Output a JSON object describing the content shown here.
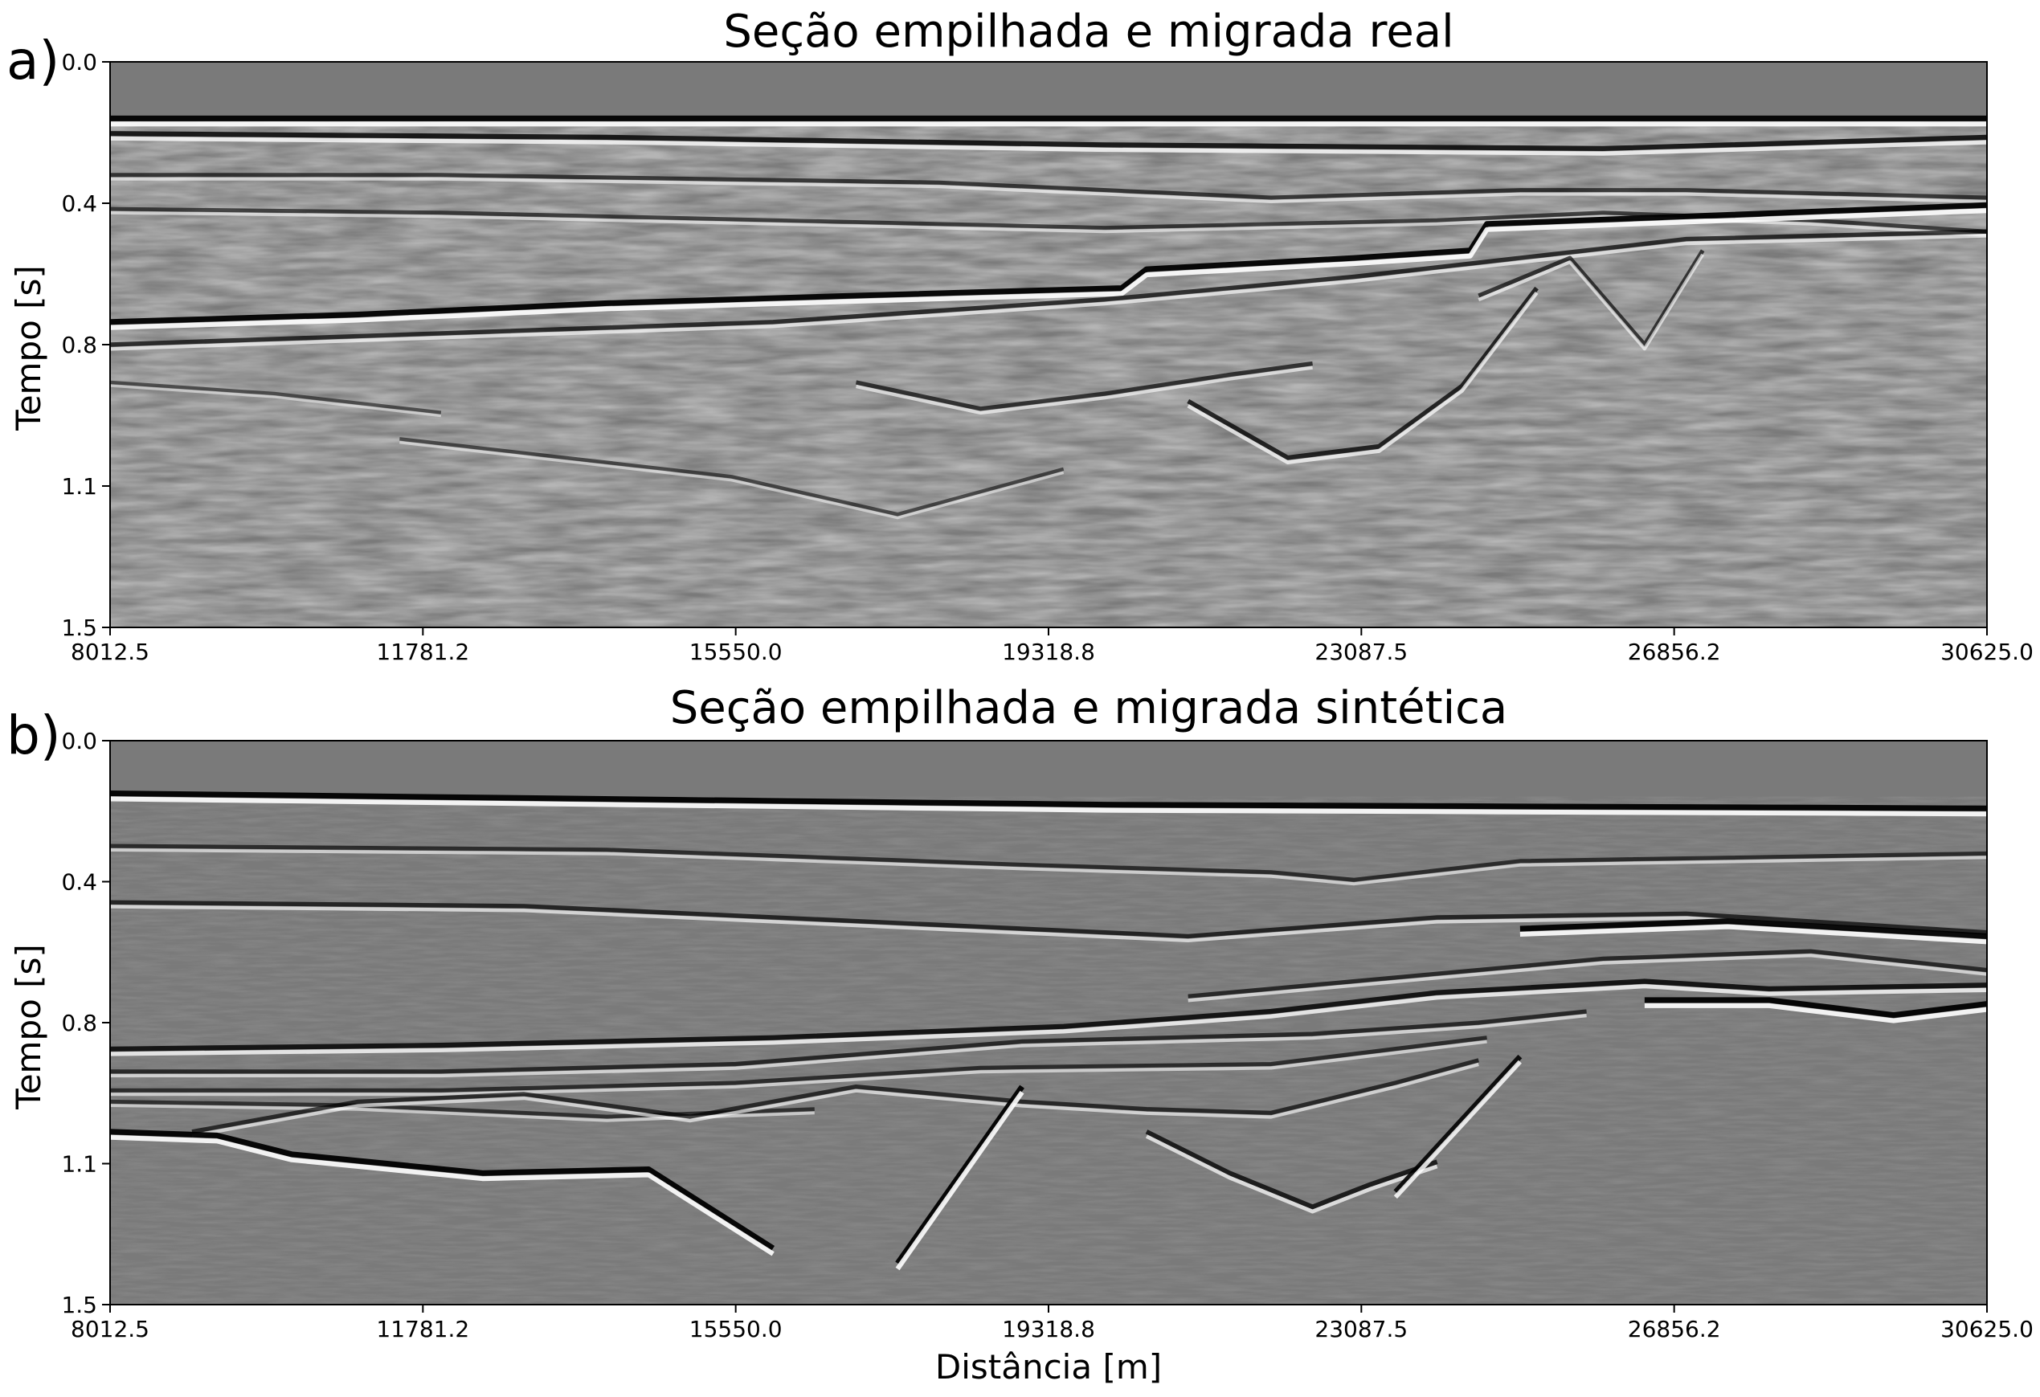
{
  "chart_data": [
    {
      "type": "heatmap",
      "panel_label": "a)",
      "title": "Seção empilhada e migrada real",
      "ylabel": "Tempo [s]",
      "xlabel": "",
      "x_tick_labels": [
        "8012.5",
        "11781.2",
        "15550.0",
        "19318.8",
        "23087.5",
        "26856.2",
        "30625.0"
      ],
      "y_tick_labels": [
        "0.0",
        "0.4",
        "0.8",
        "1.1",
        "1.5"
      ],
      "xlim": [
        8012.5,
        30625.0
      ],
      "ylim": [
        0.0,
        1.5
      ],
      "colormap": "gray seismic amplitude",
      "reflectors": [
        {
          "x": [
            8012.5,
            30625.0
          ],
          "y": [
            0.15,
            0.15
          ],
          "strength": 1.0
        },
        {
          "x": [
            8012.5,
            14000,
            20000,
            26000,
            30625.0
          ],
          "y": [
            0.19,
            0.2,
            0.22,
            0.23,
            0.2
          ],
          "strength": 0.8
        },
        {
          "x": [
            8012.5,
            12000,
            18000,
            22000,
            25000,
            27000,
            30625.0
          ],
          "y": [
            0.3,
            0.3,
            0.32,
            0.36,
            0.34,
            0.34,
            0.36
          ],
          "strength": 0.5
        },
        {
          "x": [
            8012.5,
            12000,
            16000,
            20000,
            24000,
            26000,
            28500,
            30625.0
          ],
          "y": [
            0.39,
            0.4,
            0.42,
            0.44,
            0.42,
            0.4,
            0.42,
            0.45
          ],
          "strength": 0.45
        },
        {
          "x": [
            8012.5,
            11000,
            14000,
            17000,
            20200,
            20500,
            23000,
            24400,
            24600,
            27000,
            30625.0
          ],
          "y": [
            0.69,
            0.67,
            0.64,
            0.62,
            0.6,
            0.55,
            0.52,
            0.5,
            0.43,
            0.41,
            0.38
          ],
          "strength": 1.0
        },
        {
          "x": [
            8012.5,
            12000,
            16000,
            20000,
            23000,
            25000,
            27000,
            30625.0
          ],
          "y": [
            0.75,
            0.72,
            0.69,
            0.63,
            0.57,
            0.52,
            0.47,
            0.45
          ],
          "strength": 0.6
        },
        {
          "x": [
            17000,
            18500,
            20000,
            21500,
            22500
          ],
          "y": [
            0.85,
            0.92,
            0.88,
            0.83,
            0.8
          ],
          "strength": 0.55
        },
        {
          "x": [
            21000,
            22200,
            23300,
            24300,
            25200
          ],
          "y": [
            0.9,
            1.05,
            1.02,
            0.86,
            0.6
          ],
          "strength": 0.7
        },
        {
          "x": [
            24500,
            25600,
            26500,
            27200
          ],
          "y": [
            0.62,
            0.52,
            0.75,
            0.5
          ],
          "strength": 0.55
        },
        {
          "x": [
            11500,
            13500,
            15500,
            17500,
            19500
          ],
          "y": [
            1.0,
            1.05,
            1.1,
            1.2,
            1.08
          ],
          "strength": 0.35
        },
        {
          "x": [
            8012.5,
            10000,
            12000
          ],
          "y": [
            0.85,
            0.88,
            0.93
          ],
          "strength": 0.3
        }
      ]
    },
    {
      "type": "heatmap",
      "panel_label": "b)",
      "title": "Seção empilhada e migrada sintética",
      "ylabel": "Tempo [s]",
      "xlabel": "Distância [m]",
      "x_tick_labels": [
        "8012.5",
        "11781.2",
        "15550.0",
        "19318.8",
        "23087.5",
        "26856.2",
        "30625.0"
      ],
      "y_tick_labels": [
        "0.0",
        "0.4",
        "0.8",
        "1.1",
        "1.5"
      ],
      "xlim": [
        8012.5,
        30625.0
      ],
      "ylim": [
        0.0,
        1.5
      ],
      "colormap": "gray seismic amplitude",
      "reflectors": [
        {
          "x": [
            8012.5,
            20000,
            30625.0
          ],
          "y": [
            0.14,
            0.17,
            0.18
          ],
          "strength": 1.0
        },
        {
          "x": [
            8012.5,
            14000,
            19000,
            22000,
            23000,
            25000,
            30625.0
          ],
          "y": [
            0.28,
            0.29,
            0.33,
            0.35,
            0.37,
            0.32,
            0.3
          ],
          "strength": 0.5
        },
        {
          "x": [
            8012.5,
            13000,
            17000,
            21000,
            24000,
            27000,
            30625.0
          ],
          "y": [
            0.43,
            0.44,
            0.48,
            0.52,
            0.47,
            0.46,
            0.51
          ],
          "strength": 0.6
        },
        {
          "x": [
            25000,
            27500,
            30625.0
          ],
          "y": [
            0.5,
            0.48,
            0.52
          ],
          "strength": 1.0
        },
        {
          "x": [
            21000,
            23500,
            26000,
            28500,
            30625.0
          ],
          "y": [
            0.68,
            0.63,
            0.58,
            0.56,
            0.61
          ],
          "strength": 0.55
        },
        {
          "x": [
            8012.5,
            12000,
            16000,
            19500,
            22000,
            24000,
            26500,
            28000,
            30625.0
          ],
          "y": [
            0.82,
            0.81,
            0.79,
            0.76,
            0.72,
            0.67,
            0.64,
            0.66,
            0.65
          ],
          "strength": 0.8
        },
        {
          "x": [
            26500,
            28000,
            29500,
            30625.0
          ],
          "y": [
            0.69,
            0.69,
            0.73,
            0.7
          ],
          "strength": 1.0
        },
        {
          "x": [
            8012.5,
            12000,
            15550,
            19000,
            22500,
            24500,
            25800
          ],
          "y": [
            0.88,
            0.88,
            0.86,
            0.8,
            0.78,
            0.75,
            0.72
          ],
          "strength": 0.55
        },
        {
          "x": [
            8012.5,
            12000,
            15550,
            18500,
            22000,
            24600
          ],
          "y": [
            0.93,
            0.93,
            0.91,
            0.87,
            0.86,
            0.79
          ],
          "strength": 0.5
        },
        {
          "x": [
            8012.5,
            11000,
            14000,
            16500
          ],
          "y": [
            0.96,
            0.97,
            1.0,
            0.98
          ],
          "strength": 0.45
        },
        {
          "x": [
            9000,
            11000,
            13000,
            15000,
            17000,
            19000,
            20500,
            22000,
            23500,
            24500
          ],
          "y": [
            1.04,
            0.96,
            0.94,
            1.0,
            0.92,
            0.96,
            0.98,
            0.99,
            0.91,
            0.85
          ],
          "strength": 0.55
        },
        {
          "x": [
            8012.5,
            9300,
            10200,
            12500,
            14500,
            16000
          ],
          "y": [
            1.04,
            1.05,
            1.1,
            1.15,
            1.14,
            1.35
          ],
          "strength": 1.0
        },
        {
          "x": [
            20500,
            21500,
            22500,
            23200,
            24000
          ],
          "y": [
            1.04,
            1.15,
            1.24,
            1.18,
            1.12
          ],
          "strength": 0.7
        },
        {
          "x": [
            17500,
            19000
          ],
          "y": [
            1.39,
            0.92
          ],
          "strength": 1.0
        },
        {
          "x": [
            23500,
            25000
          ],
          "y": [
            1.2,
            0.84
          ],
          "strength": 0.9
        }
      ]
    }
  ]
}
